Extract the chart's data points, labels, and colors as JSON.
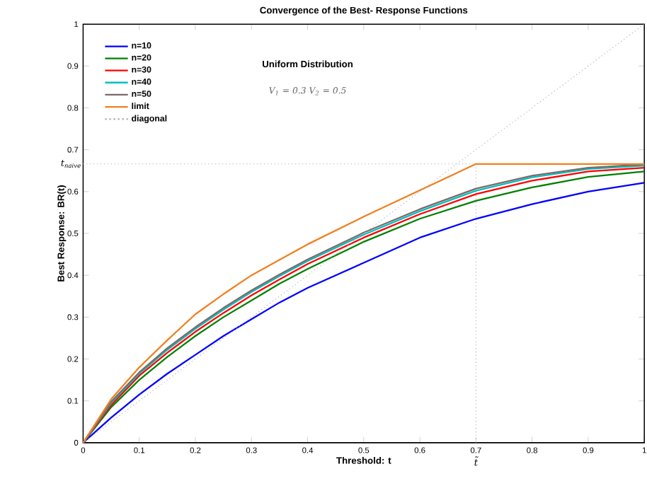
{
  "chart_data": {
    "type": "line",
    "title": "Convergence of the Best- Response Functions",
    "xlabel": "Threshold: t",
    "ylabel": "Best Response: BR(t)",
    "annotations": [
      "Uniform Distribution",
      "V$_{1}$ = 0.3  V$_{2}$ = 0.5"
    ],
    "x": [
      0,
      0.05,
      0.1,
      0.15,
      0.2,
      0.25,
      0.3,
      0.35,
      0.4,
      0.5,
      0.6,
      0.7,
      0.8,
      0.9,
      1
    ],
    "series": [
      {
        "name": "n=10",
        "color": "#0000ff",
        "values": [
          0,
          0.06,
          0.115,
          0.165,
          0.21,
          0.255,
          0.295,
          0.335,
          0.37,
          0.43,
          0.49,
          0.535,
          0.57,
          0.6,
          0.621
        ]
      },
      {
        "name": "n=20",
        "color": "#008000",
        "values": [
          0,
          0.085,
          0.15,
          0.205,
          0.255,
          0.3,
          0.34,
          0.38,
          0.415,
          0.48,
          0.535,
          0.578,
          0.61,
          0.635,
          0.648
        ]
      },
      {
        "name": "n=30",
        "color": "#ff0000",
        "values": [
          0,
          0.09,
          0.16,
          0.215,
          0.265,
          0.31,
          0.352,
          0.39,
          0.427,
          0.49,
          0.546,
          0.594,
          0.626,
          0.648,
          0.657
        ]
      },
      {
        "name": "n=40",
        "color": "#00bfbf",
        "values": [
          0,
          0.095,
          0.165,
          0.222,
          0.272,
          0.318,
          0.36,
          0.398,
          0.434,
          0.497,
          0.553,
          0.602,
          0.634,
          0.654,
          0.662
        ]
      },
      {
        "name": "n=50",
        "color": "#7a6a6a",
        "values": [
          0,
          0.098,
          0.168,
          0.226,
          0.276,
          0.322,
          0.364,
          0.402,
          0.438,
          0.502,
          0.558,
          0.607,
          0.638,
          0.657,
          0.665
        ]
      },
      {
        "name": "limit",
        "color": "#f08020",
        "x": [
          0,
          0.05,
          0.1,
          0.15,
          0.2,
          0.25,
          0.3,
          0.35,
          0.4,
          0.5,
          0.6,
          0.7,
          1
        ],
        "values": [
          0,
          0.104,
          0.18,
          0.245,
          0.307,
          0.355,
          0.4,
          0.437,
          0.474,
          0.54,
          0.603,
          0.666,
          0.666
        ]
      },
      {
        "name": "diagonal",
        "color": "#aaaaaa",
        "line_style": "dotted",
        "x": [
          0,
          1
        ],
        "values": [
          0,
          1
        ]
      }
    ],
    "ref_lines": [
      {
        "axis": "y",
        "value": 0.666,
        "label": "t$_{naive}$",
        "color": "#aaaaaa",
        "line_style": "dotted"
      },
      {
        "axis": "x",
        "value": 0.7,
        "label": "t̃",
        "color": "#aaaaaa",
        "line_style": "dotted"
      }
    ],
    "xlim": [
      0,
      1
    ],
    "ylim": [
      0,
      1
    ],
    "xticks": [
      0,
      0.1,
      0.2,
      0.3,
      0.4,
      0.5,
      0.6,
      0.7,
      0.8,
      0.9,
      1
    ],
    "yticks": [
      0,
      0.1,
      0.2,
      0.3,
      0.4,
      0.5,
      0.6,
      0.7,
      0.8,
      0.9,
      1
    ],
    "grid": false,
    "legend": "top left"
  }
}
